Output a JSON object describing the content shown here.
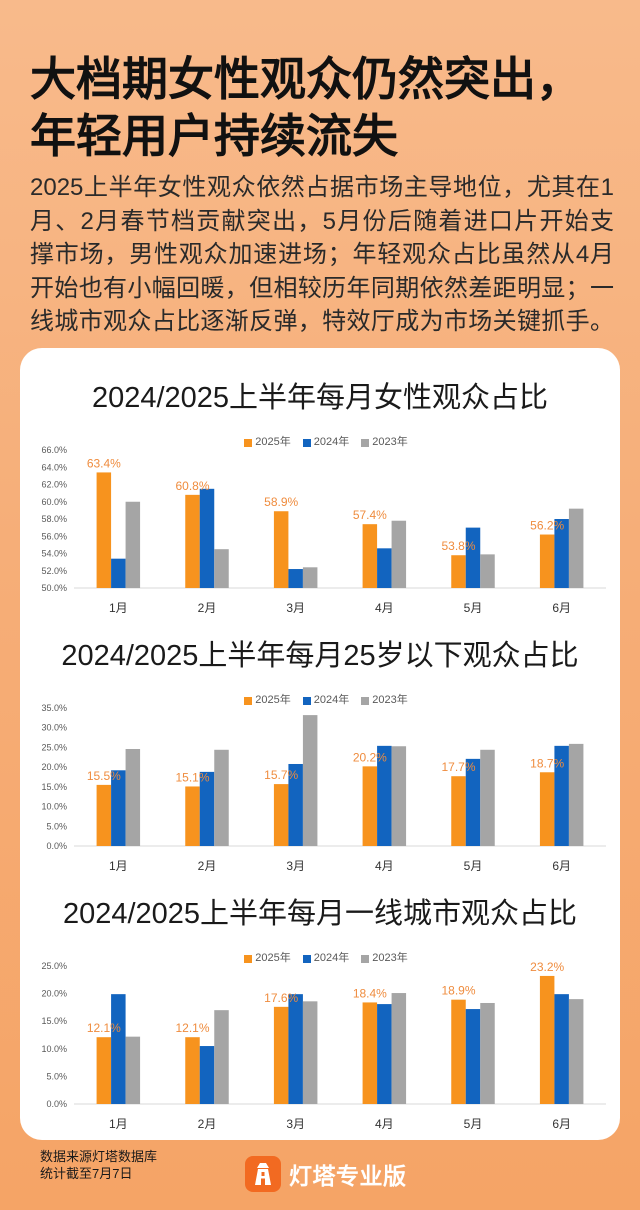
{
  "header": {
    "title_lines": [
      "大档期女性观众仍然突出，",
      "年轻用户持续流失"
    ],
    "intro_lines": [
      "2025上半年女性观众依然占据市场主导地位，尤其在1",
      "月、2月春节档贡献突出，5月份后随着进口片开始支",
      "撑市场，男性观众加速进场；年轻观众占比虽然从4月",
      "开始也有小幅回暖，但相较历年同期依然差距明显；一",
      "线城市观众占比逐渐反弹，特效厅成为市场关键抓手。"
    ]
  },
  "colors": {
    "data_label": "#ef8c3e",
    "brand": "#f26a21"
  },
  "chart_data": [
    {
      "type": "bar",
      "title": "2024/2025上半年每月女性观众占比",
      "categories": [
        "1月",
        "2月",
        "3月",
        "4月",
        "5月",
        "6月"
      ],
      "series": [
        {
          "name": "2025年",
          "color": "#f7931e",
          "values": [
            63.4,
            60.8,
            58.9,
            57.4,
            53.8,
            56.2
          ],
          "labels": [
            "63.4%",
            "60.8%",
            "58.9%",
            "57.4%",
            "53.8%",
            "56.2%"
          ]
        },
        {
          "name": "2024年",
          "color": "#1264bf",
          "values": [
            53.4,
            61.5,
            52.2,
            54.6,
            57.0,
            58.0
          ]
        },
        {
          "name": "2023年",
          "color": "#a5a5a5",
          "values": [
            60.0,
            54.5,
            52.4,
            57.8,
            53.9,
            59.2
          ]
        }
      ],
      "ylim": [
        50,
        66
      ],
      "yticks": [
        "50.0%",
        "52.0%",
        "54.0%",
        "56.0%",
        "58.0%",
        "60.0%",
        "62.0%",
        "64.0%",
        "66.0%"
      ],
      "legend": "top",
      "grid": false
    },
    {
      "type": "bar",
      "title": "2024/2025上半年每月25岁以下观众占比",
      "categories": [
        "1月",
        "2月",
        "3月",
        "4月",
        "5月",
        "6月"
      ],
      "series": [
        {
          "name": "2025年",
          "color": "#f7931e",
          "values": [
            15.5,
            15.1,
            15.7,
            20.2,
            17.7,
            18.7
          ],
          "labels": [
            "15.5%",
            "15.1%",
            "15.7%",
            "20.2%",
            "17.7%",
            "18.7%"
          ]
        },
        {
          "name": "2024年",
          "color": "#1264bf",
          "values": [
            19.2,
            18.8,
            20.8,
            25.4,
            22.1,
            25.4
          ]
        },
        {
          "name": "2023年",
          "color": "#a5a5a5",
          "values": [
            24.6,
            24.4,
            33.2,
            25.3,
            24.4,
            25.9
          ]
        }
      ],
      "ylim": [
        0,
        35
      ],
      "yticks": [
        "0.0%",
        "5.0%",
        "10.0%",
        "15.0%",
        "20.0%",
        "25.0%",
        "30.0%",
        "35.0%"
      ],
      "legend": "top",
      "grid": false
    },
    {
      "type": "bar",
      "title": "2024/2025上半年每月一线城市观众占比",
      "categories": [
        "1月",
        "2月",
        "3月",
        "4月",
        "5月",
        "6月"
      ],
      "series": [
        {
          "name": "2025年",
          "color": "#f7931e",
          "values": [
            12.1,
            12.1,
            17.6,
            18.4,
            18.9,
            23.2
          ],
          "labels": [
            "12.1%",
            "12.1%",
            "17.6%",
            "18.4%",
            "18.9%",
            "23.2%"
          ]
        },
        {
          "name": "2024年",
          "color": "#1264bf",
          "values": [
            19.9,
            10.5,
            19.9,
            18.1,
            17.2,
            19.9
          ]
        },
        {
          "name": "2023年",
          "color": "#a5a5a5",
          "values": [
            12.2,
            17.0,
            18.6,
            20.1,
            18.3,
            19.0
          ]
        }
      ],
      "ylim": [
        0,
        25
      ],
      "yticks": [
        "0.0%",
        "5.0%",
        "10.0%",
        "15.0%",
        "20.0%",
        "25.0%"
      ],
      "legend": "top",
      "grid": false
    }
  ],
  "footer": {
    "source": "数据来源灯塔数据库",
    "cutoff": "统计截至7月7日",
    "brand": "灯塔专业版",
    "brand_icon": "lighthouse-icon"
  }
}
